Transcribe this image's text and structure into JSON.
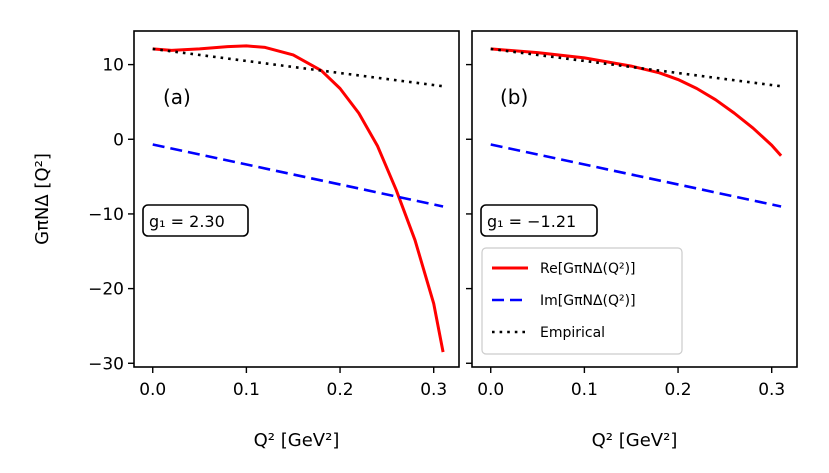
{
  "chart_data": [
    {
      "type": "line",
      "panel_label": "(a)",
      "annotation": "g₁ = 2.30",
      "xlabel": "Q² [GeV²]",
      "ylabel": "GπNΔ [Q²]",
      "xlim": [
        -0.02,
        0.327
      ],
      "ylim": [
        -30.5,
        14.5
      ],
      "xticks": [
        "0.0",
        "0.1",
        "0.2",
        "0.3"
      ],
      "yticks": [
        "10",
        "0",
        "−10",
        "−20",
        "−30"
      ],
      "series": [
        {
          "name": "Re[GπNΔ(Q²)]",
          "color": "#ff0000",
          "style": "solid",
          "x": [
            0.0,
            0.02,
            0.05,
            0.08,
            0.1,
            0.12,
            0.15,
            0.18,
            0.2,
            0.22,
            0.24,
            0.26,
            0.28,
            0.3,
            0.31
          ],
          "y": [
            12.1,
            11.9,
            12.1,
            12.4,
            12.5,
            12.3,
            11.3,
            9.2,
            6.8,
            3.5,
            -0.9,
            -6.8,
            -13.5,
            -22.0,
            -28.5
          ]
        },
        {
          "name": "Im[GπNΔ(Q²)]",
          "color": "#0000ff",
          "style": "dashed",
          "x": [
            0.0,
            0.31
          ],
          "y": [
            -0.7,
            -9.0
          ]
        },
        {
          "name": "Empirical",
          "color": "#000000",
          "style": "dotted",
          "x": [
            0.0,
            0.31
          ],
          "y": [
            12.1,
            7.1
          ]
        }
      ]
    },
    {
      "type": "line",
      "panel_label": "(b)",
      "annotation": "g₁ = −1.21",
      "xlabel": "Q² [GeV²]",
      "ylabel": "",
      "xlim": [
        -0.02,
        0.327
      ],
      "ylim": [
        -30.5,
        14.5
      ],
      "xticks": [
        "0.0",
        "0.1",
        "0.2",
        "0.3"
      ],
      "yticks": [],
      "legend": {
        "placement": "lower-left",
        "entries": [
          "Re[GπNΔ(Q²)]",
          "Im[GπNΔ(Q²)]",
          "Empirical"
        ]
      },
      "series": [
        {
          "name": "Re[GπNΔ(Q²)]",
          "color": "#ff0000",
          "style": "solid",
          "x": [
            0.0,
            0.05,
            0.1,
            0.15,
            0.18,
            0.2,
            0.22,
            0.24,
            0.26,
            0.28,
            0.3,
            0.31
          ],
          "y": [
            12.1,
            11.6,
            10.9,
            9.8,
            8.9,
            8.0,
            6.8,
            5.3,
            3.5,
            1.5,
            -0.8,
            -2.2
          ]
        },
        {
          "name": "Im[GπNΔ(Q²)]",
          "color": "#0000ff",
          "style": "dashed",
          "x": [
            0.0,
            0.31
          ],
          "y": [
            -0.7,
            -9.0
          ]
        },
        {
          "name": "Empirical",
          "color": "#000000",
          "style": "dotted",
          "x": [
            0.0,
            0.31
          ],
          "y": [
            12.1,
            7.1
          ]
        }
      ]
    }
  ]
}
